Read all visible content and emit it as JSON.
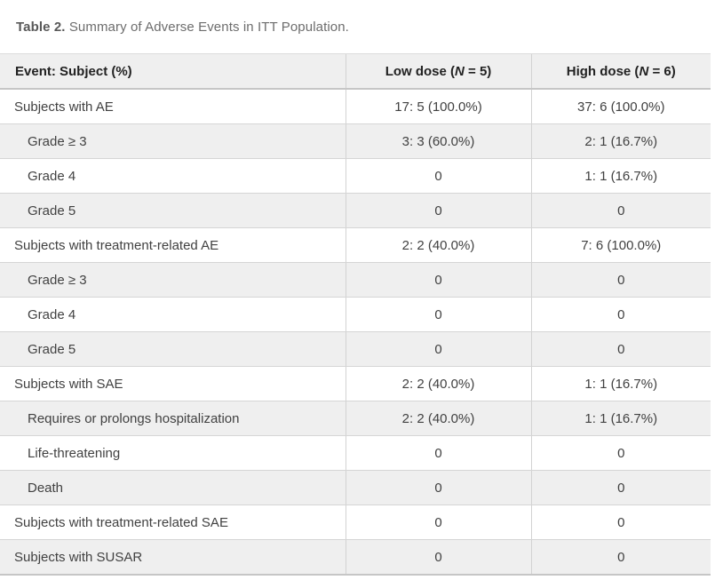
{
  "title": {
    "label": "Table 2.",
    "caption": " Summary of Adverse Events in ITT Population."
  },
  "table": {
    "header": {
      "col1": "Event: Subject (%)",
      "col2": {
        "pre": "Low dose (",
        "n": "N",
        "post": " = 5)"
      },
      "col3": {
        "pre": "High dose (",
        "n": "N",
        "post": " = 6)"
      }
    },
    "rows": [
      {
        "label": "Subjects with AE",
        "indent": false,
        "low": "17: 5 (100.0%)",
        "high": "37: 6 (100.0%)"
      },
      {
        "label": "Grade ≥ 3",
        "indent": true,
        "low": "3: 3 (60.0%)",
        "high": "2: 1 (16.7%)"
      },
      {
        "label": "Grade 4",
        "indent": true,
        "low": "0",
        "high": "1: 1 (16.7%)"
      },
      {
        "label": "Grade 5",
        "indent": true,
        "low": "0",
        "high": "0"
      },
      {
        "label": "Subjects with treatment-related AE",
        "indent": false,
        "low": "2: 2 (40.0%)",
        "high": "7: 6 (100.0%)"
      },
      {
        "label": "Grade ≥ 3",
        "indent": true,
        "low": "0",
        "high": "0"
      },
      {
        "label": "Grade 4",
        "indent": true,
        "low": "0",
        "high": "0"
      },
      {
        "label": "Grade 5",
        "indent": true,
        "low": "0",
        "high": "0"
      },
      {
        "label": "Subjects with SAE",
        "indent": false,
        "low": "2: 2 (40.0%)",
        "high": "1: 1 (16.7%)"
      },
      {
        "label": "Requires or prolongs hospitalization",
        "indent": true,
        "low": "2: 2 (40.0%)",
        "high": "1: 1 (16.7%)"
      },
      {
        "label": "Life-threatening",
        "indent": true,
        "low": "0",
        "high": "0"
      },
      {
        "label": "Death",
        "indent": true,
        "low": "0",
        "high": "0"
      },
      {
        "label": "Subjects with treatment-related SAE",
        "indent": false,
        "low": "0",
        "high": "0"
      },
      {
        "label": "Subjects with SUSAR",
        "indent": false,
        "low": "0",
        "high": "0"
      }
    ]
  },
  "colors": {
    "header_bg": "#efefef",
    "row_bg": "#ffffff",
    "row_alt_bg": "#efefef",
    "border_light": "#d5d5d5",
    "border_dark": "#c6c6c6",
    "header_text": "#222222",
    "body_text": "#414141",
    "title_text": "#6d6d6d"
  }
}
